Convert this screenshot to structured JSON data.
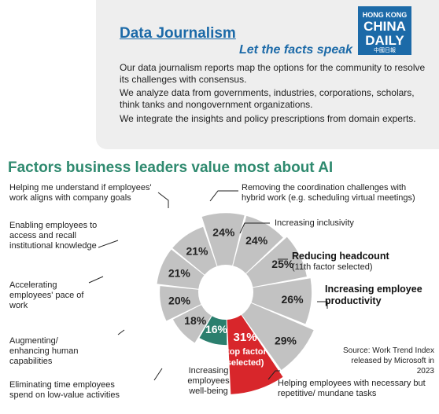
{
  "header": {
    "title": "Data Journalism",
    "tagline": "Let the facts speak",
    "paragraphs": [
      "Our data journalism reports map the options for the community to resolve its challenges with consensus.",
      "We analyze data from governments, industries, corporations, scholars, think tanks and nongovernment organizations.",
      "We integrate the insights and policy prescriptions from domain experts."
    ],
    "logo": {
      "line1": "HONG KONG",
      "line2": "CHINA",
      "line3": "DAILY",
      "line4": "中國日報"
    }
  },
  "colors": {
    "brand_blue": "#1c6aa8",
    "title_green": "#2f8a6f",
    "slice_grey": "#c2c2c2",
    "highlight_teal": "#2b7f6e",
    "highlight_red": "#d8262b"
  },
  "chart_data": {
    "type": "pie",
    "title": "Factors business leaders value most about AI",
    "style": "donut, equal-width wedges radiating at different radial lengths",
    "slices": [
      {
        "label": "Increasing employee productivity",
        "value": 31,
        "value_text": "31%",
        "note": "(top factor selected)",
        "highlight": "red"
      },
      {
        "label": "Helping employees with necessary but repetitive/ mundane tasks",
        "value": 29,
        "value_text": "29%"
      },
      {
        "label": "Increasing employees well-being",
        "value": 26,
        "value_text": "26%"
      },
      {
        "label": "Eliminating time employees spend on low-value activities",
        "value": 25,
        "value_text": "25%"
      },
      {
        "label": "Augmenting/ enhancing human capabilities",
        "value": 24,
        "value_text": "24%"
      },
      {
        "label": "Accelerating employees' pace of work",
        "value": 24,
        "value_text": "24%"
      },
      {
        "label": "Enabling employees to access and recall institutional knowledge",
        "value": 21,
        "value_text": "21%"
      },
      {
        "label": "Helping me understand if employees' work aligns with company goals",
        "value": 21,
        "value_text": "21%"
      },
      {
        "label": "Removing the coordination challenges with hybrid work (e.g. scheduling virtual meetings)",
        "value": 20,
        "value_text": "20%"
      },
      {
        "label": "Increasing inclusivity",
        "value": 18,
        "value_text": "18%"
      },
      {
        "label": "Reducing headcount",
        "value": 16,
        "value_text": "16%",
        "note": "(11th factor selected)",
        "highlight": "teal"
      }
    ],
    "source": "Source: Work Trend Index released by Microsoft in 2023"
  }
}
